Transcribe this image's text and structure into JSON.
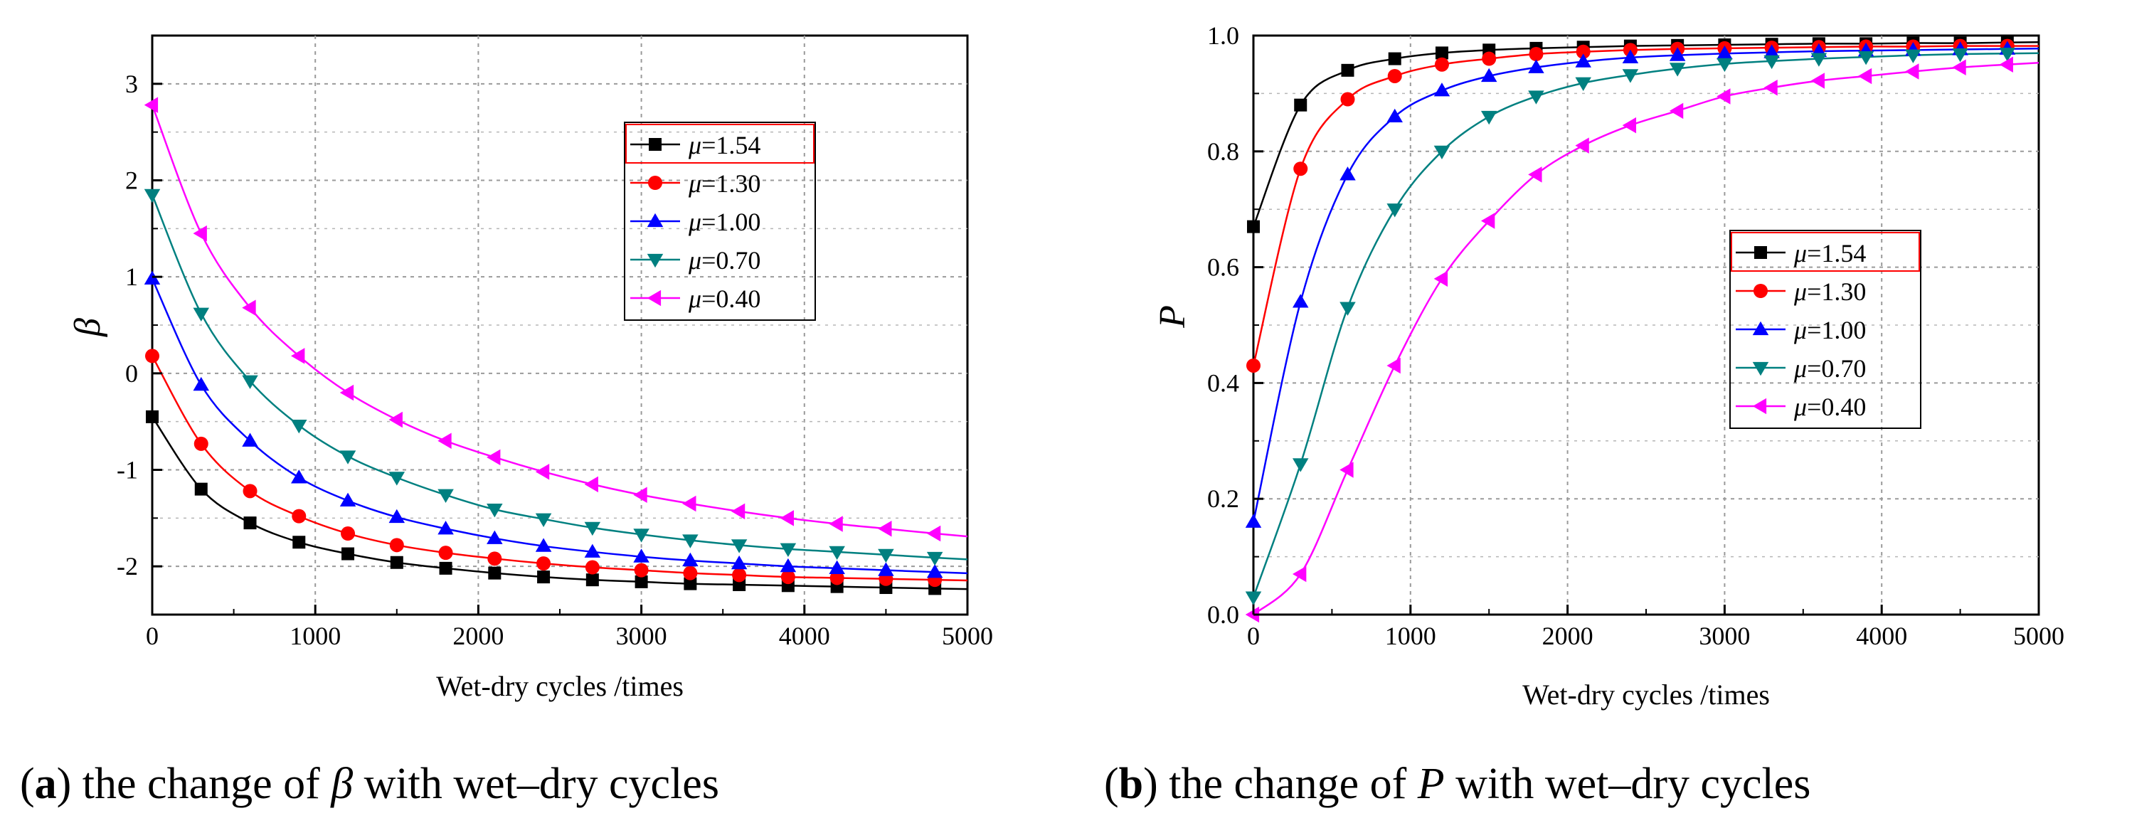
{
  "chart_data": [
    {
      "type": "line",
      "panel": "a",
      "title": "",
      "xlabel": "Wet-dry cycles /times",
      "ylabel": "β",
      "xlim": [
        0,
        5000
      ],
      "ylim": [
        -2.5,
        3.5
      ],
      "xticks": [
        0,
        1000,
        2000,
        3000,
        4000,
        5000
      ],
      "yticks": [
        -2,
        -1,
        0,
        1,
        2,
        3
      ],
      "x": [
        0,
        300,
        600,
        900,
        1200,
        1500,
        1800,
        2100,
        2400,
        2700,
        3000,
        3300,
        3600,
        3900,
        4200,
        4500,
        4800
      ],
      "legend_position": "upper-right",
      "series": [
        {
          "name": "μ=1.54",
          "label_prefix": "μ",
          "label_value": "=1.54",
          "color": "#000000",
          "marker": "square",
          "asymptote": -2.25,
          "values": [
            -0.45,
            -1.2,
            -1.55,
            -1.75,
            -1.87,
            -1.96,
            -2.02,
            -2.07,
            -2.11,
            -2.14,
            -2.16,
            -2.18,
            -2.19,
            -2.2,
            -2.21,
            -2.22,
            -2.23
          ]
        },
        {
          "name": "μ=1.30",
          "label_prefix": "μ",
          "label_value": "=1.30",
          "color": "#ff0000",
          "marker": "circle",
          "asymptote": -2.2,
          "values": [
            0.18,
            -0.73,
            -1.22,
            -1.48,
            -1.66,
            -1.78,
            -1.86,
            -1.92,
            -1.97,
            -2.01,
            -2.04,
            -2.07,
            -2.09,
            -2.11,
            -2.12,
            -2.13,
            -2.14
          ]
        },
        {
          "name": "μ=1.00",
          "label_prefix": "μ",
          "label_value": "=1.00",
          "color": "#0000ff",
          "marker": "triangle-up",
          "asymptote": -2.15,
          "values": [
            0.98,
            -0.12,
            -0.7,
            -1.08,
            -1.32,
            -1.49,
            -1.61,
            -1.71,
            -1.79,
            -1.85,
            -1.9,
            -1.94,
            -1.97,
            -2.0,
            -2.02,
            -2.04,
            -2.06
          ]
        },
        {
          "name": "μ=0.70",
          "label_prefix": "μ",
          "label_value": "=0.70",
          "color": "#008080",
          "marker": "triangle-down",
          "asymptote": -2.1,
          "values": [
            1.85,
            0.62,
            -0.08,
            -0.54,
            -0.86,
            -1.08,
            -1.26,
            -1.41,
            -1.51,
            -1.6,
            -1.67,
            -1.73,
            -1.78,
            -1.82,
            -1.85,
            -1.88,
            -1.91
          ]
        },
        {
          "name": "μ=0.40",
          "label_prefix": "μ",
          "label_value": "=0.40",
          "color": "#ff00ff",
          "marker": "triangle-left",
          "asymptote": -2.0,
          "values": [
            2.78,
            1.45,
            0.68,
            0.18,
            -0.2,
            -0.48,
            -0.7,
            -0.87,
            -1.02,
            -1.15,
            -1.26,
            -1.35,
            -1.43,
            -1.5,
            -1.56,
            -1.61,
            -1.66
          ]
        }
      ]
    },
    {
      "type": "line",
      "panel": "b",
      "title": "",
      "xlabel": "Wet-dry cycles /times",
      "ylabel": "P",
      "xlim": [
        0,
        5000
      ],
      "ylim": [
        0,
        1.0
      ],
      "xticks": [
        0,
        1000,
        2000,
        3000,
        4000,
        5000
      ],
      "yticks": [
        0.0,
        0.2,
        0.4,
        0.6,
        0.8,
        1.0
      ],
      "x": [
        0,
        300,
        600,
        900,
        1200,
        1500,
        1800,
        2100,
        2400,
        2700,
        3000,
        3300,
        3600,
        3900,
        4200,
        4500,
        4800
      ],
      "legend_position": "center-right",
      "series": [
        {
          "name": "μ=1.54",
          "label_prefix": "μ",
          "label_value": "=1.54",
          "color": "#000000",
          "marker": "square",
          "asymptote": 0.99,
          "values": [
            0.67,
            0.88,
            0.94,
            0.96,
            0.97,
            0.975,
            0.978,
            0.98,
            0.982,
            0.983,
            0.984,
            0.985,
            0.986,
            0.986,
            0.987,
            0.987,
            0.988
          ]
        },
        {
          "name": "μ=1.30",
          "label_prefix": "μ",
          "label_value": "=1.30",
          "color": "#ff0000",
          "marker": "circle",
          "asymptote": 0.985,
          "values": [
            0.43,
            0.77,
            0.89,
            0.93,
            0.95,
            0.96,
            0.968,
            0.972,
            0.975,
            0.977,
            0.978,
            0.979,
            0.98,
            0.981,
            0.981,
            0.982,
            0.982
          ]
        },
        {
          "name": "μ=1.00",
          "label_prefix": "μ",
          "label_value": "=1.00",
          "color": "#0000ff",
          "marker": "triangle-up",
          "asymptote": 0.98,
          "values": [
            0.16,
            0.54,
            0.76,
            0.86,
            0.905,
            0.93,
            0.945,
            0.955,
            0.962,
            0.966,
            0.969,
            0.971,
            0.973,
            0.974,
            0.975,
            0.976,
            0.977
          ]
        },
        {
          "name": "μ=0.70",
          "label_prefix": "μ",
          "label_value": "=0.70",
          "color": "#008080",
          "marker": "triangle-down",
          "asymptote": 0.975,
          "values": [
            0.03,
            0.26,
            0.53,
            0.7,
            0.8,
            0.86,
            0.895,
            0.918,
            0.932,
            0.943,
            0.951,
            0.956,
            0.96,
            0.963,
            0.966,
            0.968,
            0.969
          ]
        },
        {
          "name": "μ=0.40",
          "label_prefix": "μ",
          "label_value": "=0.40",
          "color": "#ff00ff",
          "marker": "triangle-left",
          "asymptote": 0.96,
          "values": [
            0.0,
            0.07,
            0.25,
            0.43,
            0.58,
            0.68,
            0.76,
            0.81,
            0.845,
            0.87,
            0.895,
            0.91,
            0.922,
            0.93,
            0.938,
            0.945,
            0.95
          ]
        }
      ]
    }
  ],
  "captions": {
    "a": {
      "prefix": "(",
      "letter": "a",
      "before_symbol": ") the change of ",
      "symbol": "β",
      "after_symbol": " with wet–dry cycles"
    },
    "b": {
      "prefix": "(",
      "letter": "b",
      "before_symbol": ") the change of ",
      "symbol": "P",
      "after_symbol": " with wet–dry cycles"
    }
  }
}
